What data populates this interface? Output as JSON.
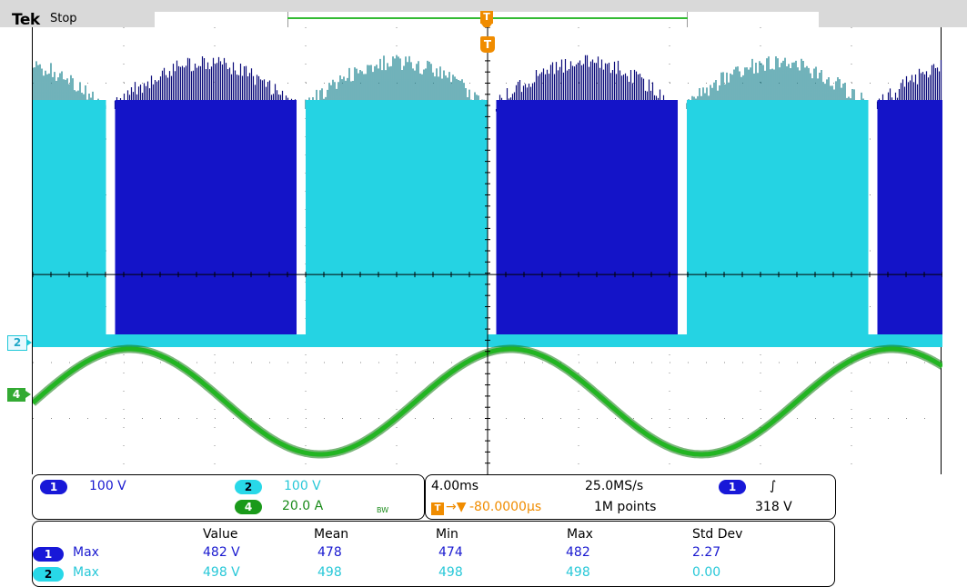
{
  "header": {
    "brand": "Tek",
    "state": "Stop"
  },
  "colors": {
    "ch1": "#1414c8",
    "ch2": "#25d3e3",
    "ch4": "#22b522",
    "trigger": "#f08c00"
  },
  "markers": {
    "trigger_label": "T",
    "ch2": "2",
    "ch4": "4"
  },
  "channels": [
    {
      "id": "1",
      "scale": "100 V"
    },
    {
      "id": "2",
      "scale": "100 V"
    },
    {
      "id": "4",
      "scale": "20.0 A",
      "bw": "BW"
    }
  ],
  "timebase": {
    "scale": "4.00ms",
    "sample_rate": "25.0MS/s",
    "delay": "-80.0000μs",
    "record": "1M points",
    "trigger_channel": "1",
    "trigger_slope": "∫",
    "trigger_level": "318 V"
  },
  "measurements": {
    "columns": [
      "Value",
      "Mean",
      "Min",
      "Max",
      "Std Dev"
    ],
    "rows": [
      {
        "channel": "1",
        "type": "Max",
        "cells": [
          "482 V",
          "478",
          "474",
          "482",
          "2.27"
        ]
      },
      {
        "channel": "2",
        "type": "Max",
        "cells": [
          "498 V",
          "498",
          "498",
          "498",
          "0.00"
        ]
      }
    ]
  }
}
